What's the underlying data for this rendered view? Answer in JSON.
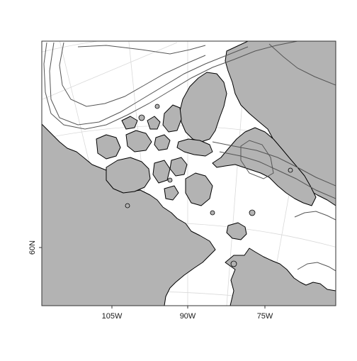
{
  "map": {
    "colors": {
      "land": "#b3b3b3",
      "coast": "#000000",
      "graticule": "#d9d9d9",
      "contour": "#555555",
      "background": "#ffffff"
    },
    "x_ticks": [
      "105W",
      "90W",
      "75W"
    ],
    "y_ticks": [
      "60N"
    ]
  }
}
